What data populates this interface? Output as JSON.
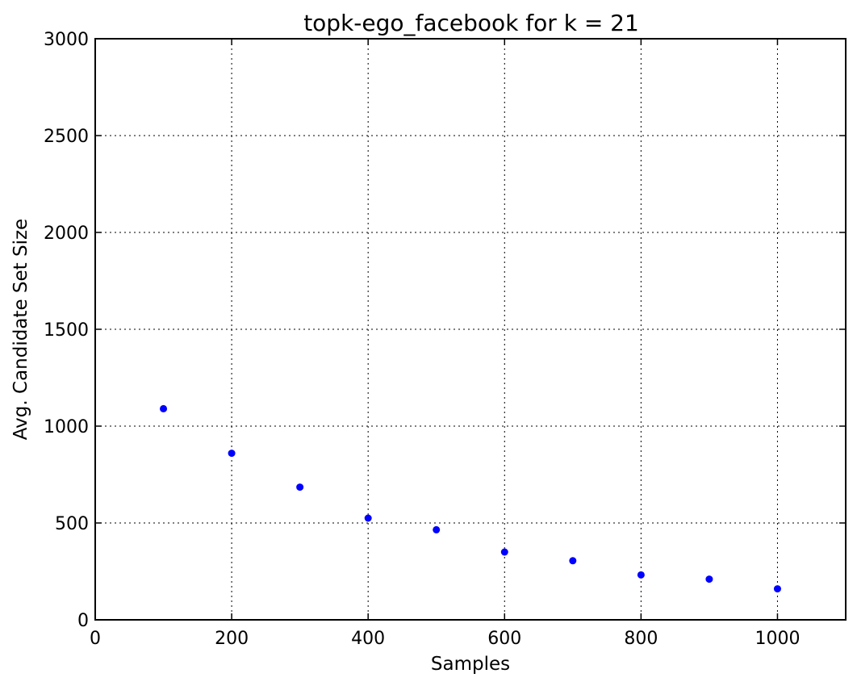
{
  "chart_data": {
    "type": "scatter",
    "title": "topk-ego_facebook for k = 21",
    "xlabel": "Samples",
    "ylabel": "Avg. Candidate Set Size",
    "xlim": [
      0,
      1100
    ],
    "ylim": [
      0,
      3000
    ],
    "xticks": [
      0,
      200,
      400,
      600,
      800,
      1000
    ],
    "yticks": [
      0,
      500,
      1000,
      1500,
      2000,
      2500,
      3000
    ],
    "grid": true,
    "series": [
      {
        "color": "#0000ff",
        "x": [
          100,
          200,
          300,
          400,
          500,
          600,
          700,
          800,
          900,
          1000
        ],
        "y": [
          1090,
          860,
          685,
          525,
          465,
          350,
          305,
          232,
          210,
          160
        ]
      }
    ]
  }
}
